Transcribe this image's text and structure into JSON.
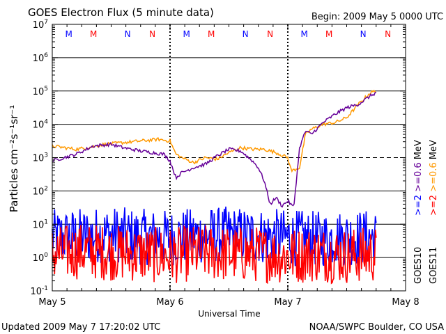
{
  "chart_data": {
    "type": "line",
    "title": "GOES Electron Flux (5 minute data)",
    "begin_label": "Begin: 2009 May 5 0000 UTC",
    "xlabel": "Universal Time",
    "ylabel": "Particles cm⁻²s⁻¹sr⁻¹",
    "xlim": [
      0,
      3
    ],
    "x_unit": "days since 2009 May 5 0000 UTC",
    "ylim_log10": [
      -1,
      7
    ],
    "x_ticks": [
      "May 5",
      "May 6",
      "May 7",
      "May 8"
    ],
    "y_ticks": [
      {
        "base": "10",
        "exp": "-1"
      },
      {
        "base": "10",
        "exp": "0"
      },
      {
        "base": "10",
        "exp": "1"
      },
      {
        "base": "10",
        "exp": "2"
      },
      {
        "base": "10",
        "exp": "3"
      },
      {
        "base": "10",
        "exp": "4"
      },
      {
        "base": "10",
        "exp": "5"
      },
      {
        "base": "10",
        "exp": "6"
      },
      {
        "base": "10",
        "exp": "7"
      }
    ],
    "thresholds_log10": [
      {
        "value": 3,
        "style": "dashed"
      },
      {
        "value": 1,
        "style": "solid"
      },
      {
        "value": 0,
        "style": "solid"
      }
    ],
    "markers": [
      {
        "label": "M",
        "x": 0.14,
        "color": "#0000ff"
      },
      {
        "label": "M",
        "x": 0.35,
        "color": "#ff0000"
      },
      {
        "label": "N",
        "x": 0.64,
        "color": "#0000ff"
      },
      {
        "label": "N",
        "x": 0.85,
        "color": "#ff0000"
      },
      {
        "label": "M",
        "x": 1.14,
        "color": "#0000ff"
      },
      {
        "label": "M",
        "x": 1.35,
        "color": "#ff0000"
      },
      {
        "label": "N",
        "x": 1.64,
        "color": "#0000ff"
      },
      {
        "label": "N",
        "x": 1.85,
        "color": "#ff0000"
      },
      {
        "label": "M",
        "x": 2.14,
        "color": "#0000ff"
      },
      {
        "label": "M",
        "x": 2.35,
        "color": "#ff0000"
      },
      {
        "label": "N",
        "x": 2.64,
        "color": "#0000ff"
      },
      {
        "label": "N",
        "x": 2.85,
        "color": "#ff0000"
      }
    ],
    "right_labels": {
      "goes11": {
        "text": "GOES11",
        "color": "#000000"
      },
      "goes10": {
        "text": "GOES10",
        "color": "#000000"
      },
      "ch2": {
        "text": ">=2",
        "color": "#ff0000"
      },
      "ch06": {
        "text": ">=0.6",
        "color": "#ff9900"
      },
      "unit1": {
        "text": "MeV",
        "color": "#000000"
      },
      "ch2b": {
        "text": ">=2",
        "color": "#0000ff"
      },
      "ch06b": {
        "text": ">=0.6",
        "color": "#660099"
      },
      "unit2": {
        "text": "MeV",
        "color": "#000000"
      }
    },
    "series": [
      {
        "name": "GOES11 >=0.6 MeV",
        "color": "#ff9900",
        "x": [
          0.0,
          0.1,
          0.2,
          0.3,
          0.45,
          0.6,
          0.75,
          0.9,
          1.0,
          1.05,
          1.1,
          1.2,
          1.3,
          1.4,
          1.5,
          1.6,
          1.7,
          1.8,
          1.9,
          2.0,
          2.03,
          2.1,
          2.15,
          2.2,
          2.3,
          2.4,
          2.5,
          2.6,
          2.7,
          2.75
        ],
        "y_log10": [
          3.35,
          3.3,
          3.25,
          3.3,
          3.4,
          3.45,
          3.5,
          3.55,
          3.5,
          3.1,
          3.0,
          2.85,
          3.0,
          2.95,
          3.15,
          3.3,
          3.25,
          3.25,
          3.15,
          3.0,
          2.6,
          2.7,
          3.7,
          3.85,
          4.0,
          4.05,
          4.2,
          4.6,
          4.95,
          5.0
        ]
      },
      {
        "name": "GOES10 >=0.6 MeV",
        "color": "#660099",
        "x": [
          0.0,
          0.1,
          0.2,
          0.35,
          0.5,
          0.6,
          0.75,
          0.85,
          0.95,
          1.0,
          1.05,
          1.1,
          1.2,
          1.3,
          1.4,
          1.5,
          1.6,
          1.7,
          1.75,
          1.8,
          1.85,
          1.9,
          1.95,
          2.0,
          2.05,
          2.1,
          2.15,
          2.2,
          2.3,
          2.4,
          2.5,
          2.6,
          2.7,
          2.75
        ],
        "y_log10": [
          2.9,
          3.0,
          3.1,
          3.35,
          3.4,
          3.3,
          3.2,
          3.15,
          3.1,
          2.9,
          2.4,
          2.55,
          2.7,
          2.8,
          3.05,
          3.25,
          3.2,
          2.9,
          2.7,
          2.3,
          1.6,
          1.8,
          1.55,
          1.7,
          1.5,
          3.3,
          3.8,
          3.7,
          4.05,
          4.3,
          4.5,
          4.6,
          4.85,
          4.95
        ]
      },
      {
        "name": "GOES10 >=2 MeV",
        "color": "#0000ff",
        "x": [
          0.0,
          0.25,
          0.5,
          0.75,
          1.0,
          1.25,
          1.5,
          1.75,
          2.0,
          2.25,
          2.5,
          2.75
        ],
        "y_log10": [
          0.6,
          0.65,
          0.7,
          0.62,
          0.6,
          0.65,
          0.7,
          0.65,
          0.6,
          0.55,
          0.6,
          0.6
        ],
        "note": "noisy near background; fluctuates between about 10^-1 and 10^1"
      },
      {
        "name": "GOES11 >=2 MeV",
        "color": "#ff0000",
        "x": [
          0.0,
          0.25,
          0.5,
          0.75,
          1.0,
          1.25,
          1.5,
          1.75,
          2.0,
          2.25,
          2.5,
          2.75
        ],
        "y_log10": [
          0.1,
          0.2,
          0.15,
          0.1,
          0.05,
          0.15,
          0.1,
          0.1,
          0.05,
          0.1,
          0.05,
          0.1
        ],
        "note": "noisy near background; fluctuates between about 10^-1 and 10^1"
      }
    ]
  },
  "footer": {
    "updated": "Updated 2009 May  7 17:20:02 UTC",
    "credit": "NOAA/SWPC Boulder, CO USA"
  }
}
